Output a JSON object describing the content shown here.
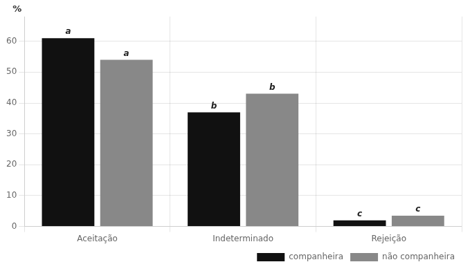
{
  "chart_data": {
    "type": "bar",
    "categories": [
      "Aceitação",
      "Indeterminado",
      "Rejeição"
    ],
    "series": [
      {
        "name": "companheira",
        "color": "#111111",
        "values": [
          61,
          37,
          2
        ],
        "value_labels": [
          "a",
          "b",
          "c"
        ]
      },
      {
        "name": "não companheira",
        "color": "#888888",
        "values": [
          54,
          43,
          3.5
        ],
        "value_labels": [
          "a",
          "b",
          "c"
        ]
      }
    ],
    "ylabel": "%",
    "ylim": [
      0,
      68
    ],
    "yticks": [
      0,
      10,
      20,
      30,
      40,
      50,
      60
    ],
    "grid": true,
    "legend": "lower right"
  }
}
